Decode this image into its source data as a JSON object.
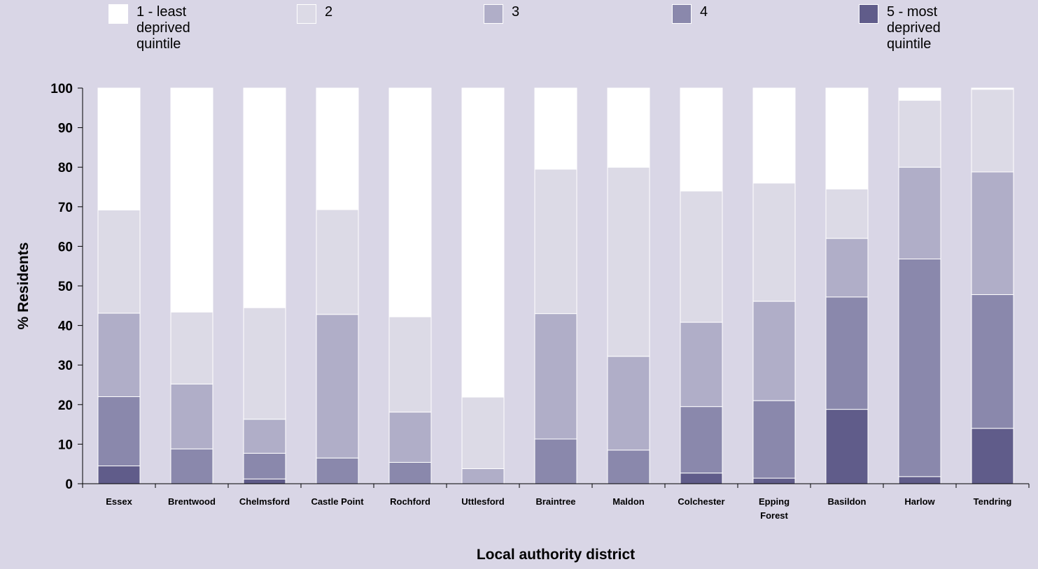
{
  "chart_data": {
    "type": "bar",
    "stacked": true,
    "title": "",
    "xlabel": "Local authority district",
    "ylabel": "% Residents",
    "ylim": [
      0,
      100
    ],
    "yticks": [
      0,
      10,
      20,
      30,
      40,
      50,
      60,
      70,
      80,
      90,
      100
    ],
    "grid": false,
    "legend_position": "top",
    "categories": [
      "Essex",
      "Brentwood",
      "Chelmsford",
      "Castle Point",
      "Rochford",
      "Uttlesford",
      "Braintree",
      "Maldon",
      "Colchester",
      "Epping Forest",
      "Basildon",
      "Harlow",
      "Tendring"
    ],
    "series": [
      {
        "name": "5 - most deprived quintile",
        "color": "#605c8a",
        "values": [
          4.5,
          0,
          1.2,
          0,
          0,
          0,
          0,
          0,
          2.7,
          1.4,
          18.8,
          1.8,
          14.0
        ]
      },
      {
        "name": "4",
        "color": "#8a88ac",
        "values": [
          17.5,
          8.8,
          6.5,
          6.5,
          5.4,
          0,
          11.3,
          8.5,
          16.8,
          19.6,
          28.4,
          55.0,
          33.8
        ]
      },
      {
        "name": "3",
        "color": "#b0aec8",
        "values": [
          21.1,
          16.4,
          8.6,
          36.3,
          12.7,
          3.8,
          31.7,
          23.7,
          21.3,
          25.1,
          14.8,
          23.2,
          31.0
        ]
      },
      {
        "name": "2",
        "color": "#dcdae6",
        "values": [
          26.1,
          18.2,
          28.2,
          26.5,
          24.1,
          18.1,
          36.5,
          47.8,
          33.2,
          29.9,
          12.5,
          16.9,
          20.9
        ]
      },
      {
        "name": "1 - least deprived quintile",
        "color": "#ffffff",
        "values": [
          30.8,
          56.6,
          55.5,
          30.7,
          57.8,
          78.1,
          20.5,
          20.0,
          26.0,
          24.0,
          25.5,
          3.1,
          0.3
        ]
      }
    ]
  }
}
